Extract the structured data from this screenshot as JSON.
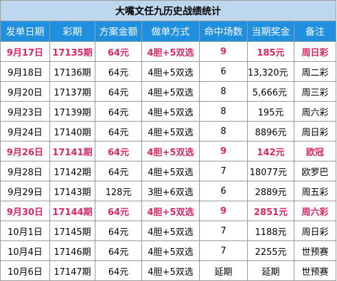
{
  "title": "大嘴文任九历史战绩统计",
  "headers": [
    "发单日期",
    "彩期",
    "方案金额",
    "做单方式",
    "命中场数",
    "当期奖金",
    "备注"
  ],
  "rows": [
    {
      "date": "9月17日",
      "period": "17135期",
      "amount": "64元",
      "method": "4胆+5双选",
      "hits": "9",
      "prize": "185元",
      "note": "周日彩",
      "highlight": true
    },
    {
      "date": "9月18日",
      "period": "17136期",
      "amount": "64元",
      "method": "4胆+5双选",
      "hits": "6",
      "prize": "13,320元",
      "note": "周二彩",
      "highlight": false
    },
    {
      "date": "9月20日",
      "period": "17137期",
      "amount": "64元",
      "method": "4胆+5双选",
      "hits": "8",
      "prize": "5,666元",
      "note": "周三彩",
      "highlight": false
    },
    {
      "date": "9月23日",
      "period": "17139期",
      "amount": "64元",
      "method": "4胆+5双选",
      "hits": "8",
      "prize": "195元",
      "note": "周六彩",
      "highlight": false
    },
    {
      "date": "9月24日",
      "period": "17140期",
      "amount": "64元",
      "method": "4胆+5双选",
      "hits": "8",
      "prize": "8896元",
      "note": "周日彩",
      "highlight": false
    },
    {
      "date": "9月26日",
      "period": "17141期",
      "amount": "64元",
      "method": "4胆+5双选",
      "hits": "9",
      "prize": "142元",
      "note": "欧冠",
      "highlight": true
    },
    {
      "date": "9月28日",
      "period": "17142期",
      "amount": "64元",
      "method": "4胆+5双选",
      "hits": "7",
      "prize": "18077元",
      "note": "欧罗巴",
      "highlight": false
    },
    {
      "date": "9月29日",
      "period": "17143期",
      "amount": "128元",
      "method": "3胆+6双选",
      "hits": "6",
      "prize": "2889元",
      "note": "周五彩",
      "highlight": false
    },
    {
      "date": "9月30日",
      "period": "17144期",
      "amount": "64元",
      "method": "4胆+5双选",
      "hits": "9",
      "prize": "2851元",
      "note": "周六彩",
      "highlight": true
    },
    {
      "date": "10月1日",
      "period": "17145期",
      "amount": "64元",
      "method": "4胆+5双选",
      "hits": "7",
      "prize": "1188元",
      "note": "周日彩",
      "highlight": false
    },
    {
      "date": "10月4日",
      "period": "17146期",
      "amount": "64元",
      "method": "4胆+5双选",
      "hits": "7",
      "prize": "2255元",
      "note": "世预赛",
      "highlight": false
    },
    {
      "date": "10月6日",
      "period": "17147期",
      "amount": "64元",
      "method": "4胆+5双选",
      "hits": "延期",
      "prize": "延期",
      "note": "世预赛",
      "highlight": false
    }
  ],
  "colors": {
    "title_bg": "#bdd7ee",
    "header_bg": "#1f8fe0",
    "highlight_text": "#e0245e",
    "grid": "#9a9a9a"
  }
}
